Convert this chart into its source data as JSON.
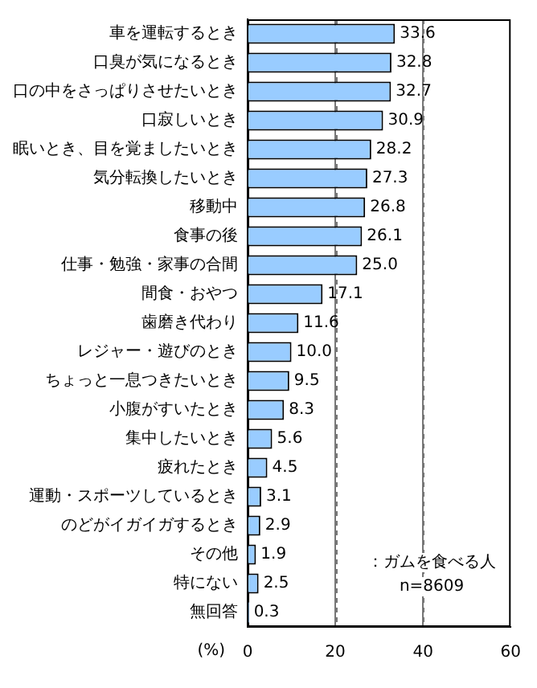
{
  "chart_data": {
    "type": "bar",
    "orientation": "horizontal",
    "xlabel": "(%)",
    "categories": [
      "車を運転するとき",
      "口臭が気になるとき",
      "口の中をさっぱりさせたいとき",
      "口寂しいとき",
      "眠いとき、目を覚ましたいとき",
      "気分転換したいとき",
      "移動中",
      "食事の後",
      "仕事・勉強・家事の合間",
      "間食・おやつ",
      "歯磨き代わり",
      "レジャー・遊びのとき",
      "ちょっと一息つきたいとき",
      "小腹がすいたとき",
      "集中したいとき",
      "疲れたとき",
      "運動・スポーツしているとき",
      "のどがイガイガするとき",
      "その他",
      "特にない",
      "無回答"
    ],
    "values": [
      33.6,
      32.8,
      32.7,
      30.9,
      28.2,
      27.3,
      26.8,
      26.1,
      25.0,
      17.1,
      11.6,
      10.0,
      9.5,
      8.3,
      5.6,
      4.5,
      3.1,
      2.9,
      1.9,
      2.5,
      0.3
    ],
    "value_labels": [
      "33.6",
      "32.8",
      "32.7",
      "30.9",
      "28.2",
      "27.3",
      "26.8",
      "26.1",
      "25.0",
      "17.1",
      "11.6",
      "10.0",
      "9.5",
      "8.3",
      "5.6",
      "4.5",
      "3.1",
      "2.9",
      "1.9",
      "2.5",
      "0.3"
    ],
    "color": "#99ccff",
    "xlim": [
      0,
      60
    ],
    "xticks": [
      0,
      20,
      40,
      60
    ],
    "grid": "x",
    "annotations": [
      "：ガムを食べる人",
      "n=8609"
    ]
  }
}
